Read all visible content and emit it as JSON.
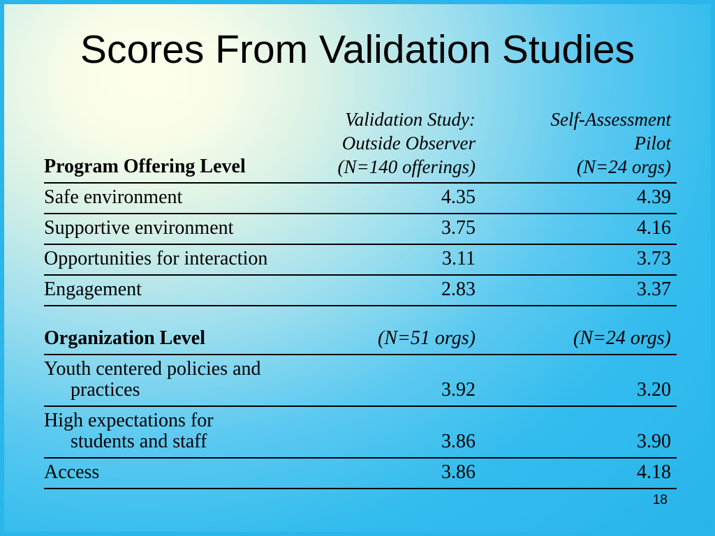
{
  "slide": {
    "title": "Scores From Validation Studies",
    "page_number": "18"
  },
  "colors": {
    "background_cyan": "#2ab5eb",
    "background_highlight": "#ffffee",
    "text": "#000000",
    "rule_lines": "#000000"
  },
  "table": {
    "section1": {
      "header": {
        "col1": "Program Offering Level",
        "col2": "Validation Study:\nOutside Observer\n(N=140 offerings)",
        "col3": "Self-Assessment\nPilot\n(N=24 orgs)"
      },
      "rows": [
        {
          "label": "Safe environment",
          "observer": "4.35",
          "pilot": "4.39"
        },
        {
          "label": "Supportive environment",
          "observer": "3.75",
          "pilot": "4.16"
        },
        {
          "label": "Opportunities for interaction",
          "observer": "3.11",
          "pilot": "3.73"
        },
        {
          "label": "Engagement",
          "observer": "2.83",
          "pilot": "3.37"
        }
      ]
    },
    "section2": {
      "header": {
        "col1": "Organization Level",
        "col2": "(N=51 orgs)",
        "col3": "(N=24 orgs)"
      },
      "rows": [
        {
          "label": "Youth centered policies and\npractices",
          "observer": "3.92",
          "pilot": "3.20"
        },
        {
          "label": "High expectations for\nstudents and staff",
          "observer": "3.86",
          "pilot": "3.90"
        },
        {
          "label": "Access",
          "observer": "3.86",
          "pilot": "4.18"
        }
      ]
    }
  }
}
